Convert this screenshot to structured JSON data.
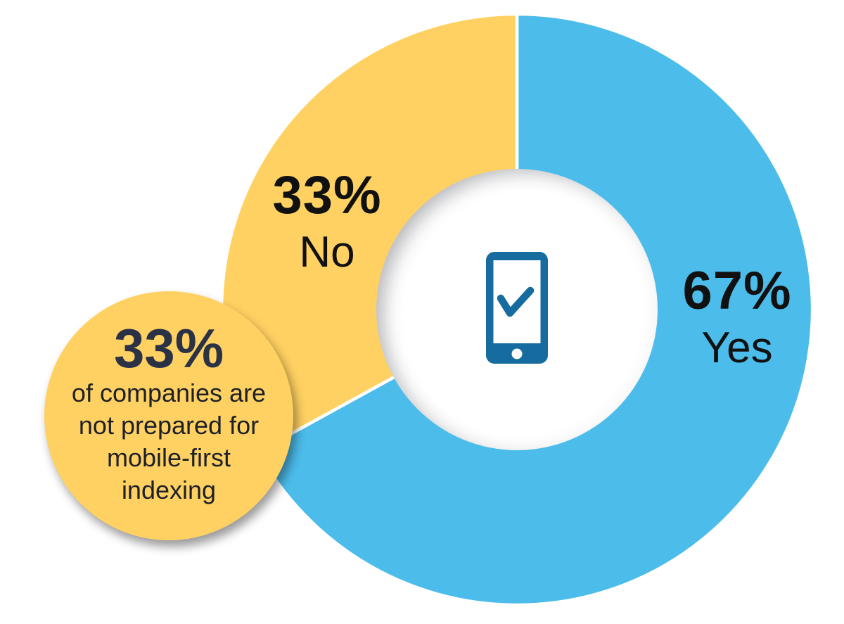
{
  "chart_data": {
    "type": "pie",
    "subtype": "donut",
    "title": "",
    "categories": [
      "Yes",
      "No"
    ],
    "values": [
      67,
      33
    ],
    "slices": [
      {
        "label": "Yes",
        "value": 67,
        "pct_label": "67%",
        "color": "#4CBCEB"
      },
      {
        "label": "No",
        "value": 33,
        "pct_label": "33%",
        "color": "#FFD162"
      }
    ],
    "start_angle_deg": 0,
    "direction": "clockwise",
    "hole_ratio": 0.476,
    "divider_color": "#FFFFFF",
    "label_color": "#111111",
    "legend_position": "on-chart",
    "center_icon": {
      "name": "smartphone-checkmark-icon",
      "color": "#176C9F"
    },
    "callout": {
      "headline": "33%",
      "lines": [
        "of companies are",
        "not prepared for",
        "mobile-first",
        "indexing"
      ],
      "full_text": "33% of companies are not prepared for mobile-first indexing",
      "bg_color": "#FFD162",
      "headline_color": "#2B3245",
      "text_color": "#1D2027"
    }
  }
}
